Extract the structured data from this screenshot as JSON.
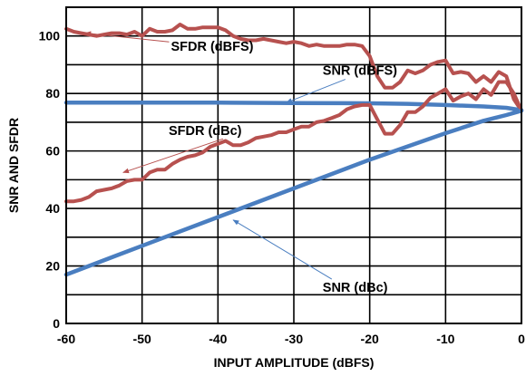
{
  "chart_data": {
    "type": "line",
    "title": "",
    "xlabel": "INPUT AMPLITUDE (dBFS)",
    "ylabel": "SNR AND SFDR",
    "xlim": [
      -60,
      0
    ],
    "ylim": [
      0,
      110
    ],
    "xticks": [
      -60,
      -50,
      -40,
      -30,
      -20,
      -10,
      0
    ],
    "yticks": [
      0,
      20,
      40,
      60,
      80,
      100
    ],
    "xtick_labels": [
      "-60",
      "-50",
      "-40",
      "-30",
      "-20",
      "-10",
      "0"
    ],
    "ytick_labels": [
      "0",
      "20",
      "40",
      "60",
      "80",
      "100"
    ],
    "grid": true,
    "legend": "none",
    "series": [
      {
        "name": "SFDR (dBFS)",
        "color": "#b7514f",
        "x": [
          -60,
          -59,
          -58,
          -57,
          -56,
          -55,
          -54,
          -53,
          -52,
          -51,
          -50,
          -49,
          -48,
          -47,
          -46,
          -45,
          -44,
          -43,
          -42,
          -41,
          -40,
          -39,
          -38,
          -37,
          -36,
          -35,
          -34,
          -33,
          -32,
          -31,
          -30,
          -29,
          -28,
          -27,
          -26,
          -25,
          -24,
          -23,
          -22,
          -21,
          -20,
          -19,
          -18,
          -17,
          -16,
          -15,
          -14,
          -13,
          -12,
          -11,
          -10,
          -9,
          -8,
          -7,
          -6,
          -5,
          -4,
          -3,
          -2,
          -1,
          0
        ],
        "y": [
          102.5,
          101.5,
          101,
          100.5,
          100,
          100.5,
          101,
          101,
          100.5,
          101.5,
          100,
          102.5,
          101.5,
          101.5,
          102,
          104,
          102.5,
          102.5,
          103,
          103,
          103,
          102,
          100,
          99,
          98.5,
          98.5,
          99,
          98.5,
          98,
          97.5,
          98,
          97.5,
          96.5,
          97,
          96.5,
          96.5,
          96.5,
          97,
          97,
          96.5,
          93,
          86,
          82,
          82,
          84,
          88,
          87,
          88,
          90,
          91,
          91.5,
          87,
          87.5,
          87,
          84,
          86,
          84,
          87.5,
          86,
          78,
          74
        ]
      },
      {
        "name": "SNR (dBFS)",
        "color": "#4a7ec0",
        "x": [
          -60,
          -50,
          -40,
          -30,
          -20,
          -15,
          -10,
          -5,
          -2,
          0
        ],
        "y": [
          76.8,
          76.8,
          76.8,
          76.7,
          76.6,
          76.4,
          76.0,
          75.5,
          75.0,
          74.2
        ]
      },
      {
        "name": "SFDR (dBc)",
        "color": "#b7514f",
        "x": [
          -60,
          -59,
          -58,
          -57,
          -56,
          -55,
          -54,
          -53,
          -52,
          -51,
          -50,
          -49,
          -48,
          -47,
          -46,
          -45,
          -44,
          -43,
          -42,
          -41,
          -40,
          -39,
          -38,
          -37,
          -36,
          -35,
          -34,
          -33,
          -32,
          -31,
          -30,
          -29,
          -28,
          -27,
          -26,
          -25,
          -24,
          -23,
          -22,
          -21,
          -20,
          -19,
          -18,
          -17,
          -16,
          -15,
          -14,
          -13,
          -12,
          -11,
          -10,
          -9,
          -8,
          -7,
          -6,
          -5,
          -4,
          -3,
          -2,
          -1,
          0
        ],
        "y": [
          42.5,
          42.5,
          43,
          44,
          46,
          46.5,
          47,
          48,
          49.5,
          50,
          50,
          52.5,
          53.5,
          53.5,
          55.5,
          57,
          58,
          58.5,
          59.5,
          61.5,
          62.5,
          63.5,
          62,
          62,
          63,
          64.5,
          65,
          65.5,
          66.5,
          66.5,
          67.5,
          68.5,
          68.5,
          70,
          70.5,
          71.5,
          72.5,
          74.5,
          75.5,
          76,
          76,
          71,
          66,
          66,
          69,
          73.5,
          73.5,
          75.5,
          78.5,
          80,
          81.5,
          77.5,
          79,
          80,
          78,
          81.5,
          79.5,
          84,
          84,
          80,
          74
        ]
      },
      {
        "name": "SNR (dBc)",
        "color": "#4a7ec0",
        "x": [
          -60,
          -50,
          -40,
          -30,
          -20,
          -10,
          -5,
          -2,
          0
        ],
        "y": [
          17,
          27,
          37,
          47,
          57,
          66.2,
          70.5,
          72.5,
          74
        ]
      }
    ],
    "annotations": [
      {
        "text": "SFDR (dBFS)",
        "x": -46.2,
        "y": 94.8,
        "points_to": [
          -57.5,
          101
        ]
      },
      {
        "text": "SNR (dBFS)",
        "x": -26.2,
        "y": 86.5,
        "points_to": [
          -31,
          76.8
        ]
      },
      {
        "text": "SFDR (dBc)",
        "x": -46.5,
        "y": 65.5,
        "points_to": [
          -52.5,
          52.5
        ]
      },
      {
        "text": "SNR (dBc)",
        "x": -26.2,
        "y": 11,
        "points_to": [
          -38,
          36
        ]
      }
    ]
  }
}
